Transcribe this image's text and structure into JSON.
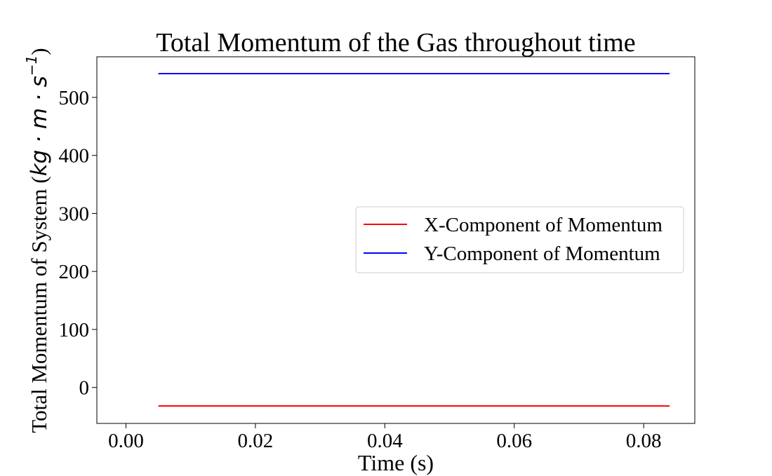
{
  "chart_data": {
    "type": "line",
    "title": "Total Momentum of the Gas throughout time",
    "xlabel": "Time (s)",
    "ylabel": {
      "prefix": "Total Momentum of System (",
      "units": "kg · m · s",
      "exponent": "−1",
      "suffix": ")"
    },
    "xlim": [
      -0.0045,
      0.0879
    ],
    "ylim": [
      -62,
      570
    ],
    "x_ticks": [
      0.0,
      0.02,
      0.04,
      0.06,
      0.08
    ],
    "x_tick_labels": [
      "0.00",
      "0.02",
      "0.04",
      "0.06",
      "0.08"
    ],
    "y_ticks": [
      0,
      100,
      200,
      300,
      400,
      500
    ],
    "y_tick_labels": [
      "0",
      "100",
      "200",
      "300",
      "400",
      "500"
    ],
    "grid": false,
    "legend_position": "center-right",
    "series": [
      {
        "name": "X-Component of Momentum",
        "color": "#ff0000",
        "x": [
          0.005,
          0.084
        ],
        "y": [
          -32,
          -32
        ]
      },
      {
        "name": "Y-Component of Momentum",
        "color": "#0000ff",
        "x": [
          0.005,
          0.084
        ],
        "y": [
          541,
          541
        ]
      }
    ]
  }
}
